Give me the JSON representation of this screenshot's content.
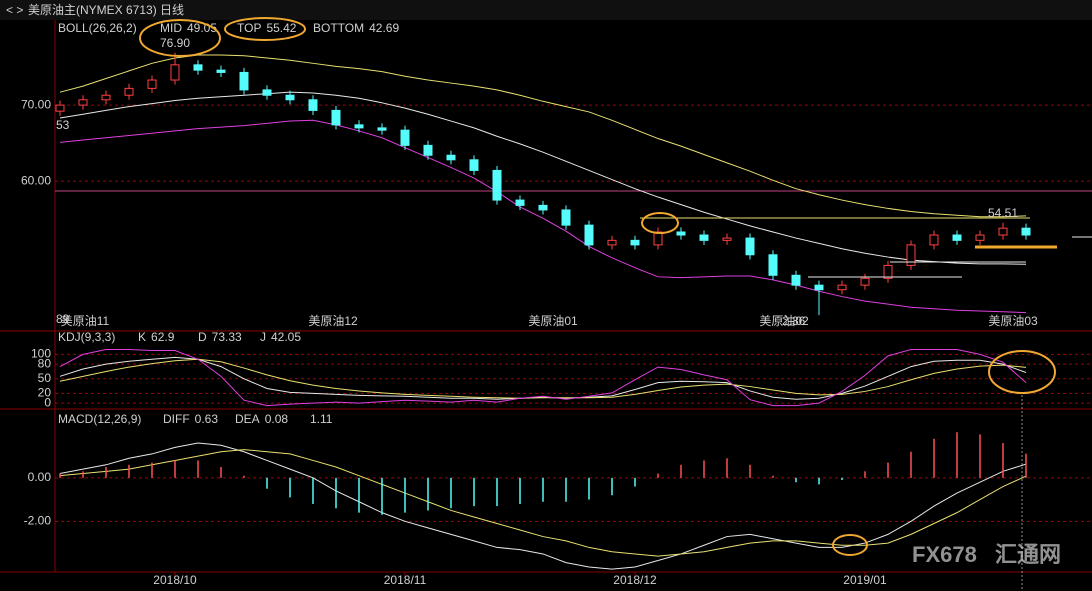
{
  "chart_data": [
    {
      "type": "candlestick",
      "title": "美原油主(NYMEX 6713)",
      "period": "日线",
      "indicator": "BOLL(26,26,2)",
      "categories": [
        null,
        null,
        null,
        null,
        null,
        "2018/10",
        null,
        null,
        null,
        null,
        null,
        null,
        null,
        null,
        null,
        "2018/11",
        null,
        null,
        null,
        null,
        null,
        null,
        null,
        null,
        null,
        "2018/12",
        null,
        null,
        null,
        null,
        null,
        null,
        null,
        null,
        null,
        "2019/01",
        null,
        null,
        null,
        null,
        null,
        null,
        null
      ],
      "open": [
        69.2,
        70.0,
        70.7,
        71.3,
        72.2,
        73.3,
        75.3,
        74.6,
        74.3,
        72.0,
        71.3,
        70.7,
        69.3,
        67.4,
        67.0,
        66.7,
        64.7,
        63.4,
        62.8,
        61.4,
        57.5,
        56.8,
        56.2,
        54.2,
        51.6,
        52.2,
        51.6,
        53.3,
        52.9,
        52.2,
        52.5,
        50.3,
        47.6,
        46.3,
        45.7,
        46.3,
        47.2,
        48.9,
        51.6,
        52.9,
        52.2,
        52.9,
        53.8
      ],
      "high": [
        70.6,
        71.3,
        71.9,
        72.8,
        73.9,
        76.9,
        75.9,
        75.2,
        74.9,
        72.6,
        71.9,
        71.3,
        69.9,
        68.0,
        67.6,
        67.3,
        65.3,
        64.0,
        63.4,
        62.0,
        58.1,
        57.4,
        56.8,
        54.8,
        52.8,
        52.8,
        53.9,
        53.9,
        53.5,
        53.1,
        53.1,
        50.9,
        48.2,
        46.9,
        46.9,
        47.8,
        49.5,
        52.2,
        53.5,
        53.5,
        53.5,
        54.51,
        54.4
      ],
      "low": [
        68.6,
        69.4,
        70.1,
        70.7,
        71.6,
        72.7,
        74.0,
        73.7,
        71.4,
        70.7,
        70.1,
        68.7,
        66.8,
        66.4,
        66.1,
        64.1,
        62.8,
        62.2,
        60.8,
        56.9,
        56.2,
        55.6,
        53.6,
        51.0,
        51.0,
        51.0,
        51.0,
        52.3,
        51.6,
        51.6,
        49.7,
        47.0,
        45.7,
        42.36,
        45.1,
        45.7,
        46.6,
        48.3,
        51.0,
        51.6,
        51.6,
        52.3,
        52.3
      ],
      "close": [
        70.0,
        70.7,
        71.3,
        72.2,
        73.3,
        75.3,
        74.6,
        74.3,
        72.0,
        71.3,
        70.7,
        69.3,
        67.4,
        67.0,
        66.7,
        64.7,
        63.4,
        62.8,
        61.4,
        57.5,
        56.8,
        56.2,
        54.2,
        51.6,
        52.2,
        51.6,
        53.3,
        52.9,
        52.2,
        52.5,
        50.3,
        47.6,
        46.3,
        45.7,
        46.3,
        47.2,
        48.9,
        51.6,
        52.9,
        52.2,
        52.9,
        53.8,
        52.9
      ],
      "up_color": "#ff4040",
      "down_color": "#54fcfc",
      "series": [
        {
          "name": "MID",
          "color": "#e8e8e8",
          "values": [
            68.3,
            68.8,
            69.3,
            69.8,
            70.2,
            70.6,
            70.9,
            71.1,
            71.3,
            71.5,
            71.7,
            71.6,
            71.3,
            70.9,
            70.3,
            69.6,
            68.8,
            67.9,
            67.0,
            65.9,
            64.9,
            63.8,
            62.6,
            61.4,
            60.2,
            59.0,
            57.9,
            56.9,
            55.9,
            55.0,
            54.1,
            53.3,
            52.5,
            51.8,
            51.1,
            50.5,
            50.0,
            49.6,
            49.4,
            49.2,
            49.1,
            49.1,
            49.05
          ]
        },
        {
          "name": "TOP",
          "color": "#e8e070",
          "values": [
            71.7,
            72.5,
            73.5,
            74.5,
            75.5,
            76.2,
            76.6,
            76.6,
            76.5,
            76.2,
            75.9,
            75.5,
            75.1,
            74.8,
            74.4,
            73.8,
            73.3,
            72.9,
            72.5,
            72.0,
            71.3,
            70.5,
            69.8,
            69.1,
            68.0,
            66.8,
            65.6,
            64.6,
            63.5,
            62.4,
            61.3,
            60.1,
            59.0,
            58.2,
            57.5,
            56.9,
            56.4,
            56.0,
            55.7,
            55.5,
            55.3,
            55.3,
            55.42
          ]
        },
        {
          "name": "BOTTOM",
          "color": "#e040e0",
          "values": [
            65.1,
            65.4,
            65.7,
            66.0,
            66.3,
            66.6,
            66.9,
            67.1,
            67.3,
            67.6,
            67.9,
            68.0,
            67.4,
            66.6,
            65.7,
            64.4,
            63.1,
            61.8,
            60.4,
            58.6,
            56.6,
            55.1,
            53.4,
            51.4,
            49.9,
            48.6,
            47.4,
            47.3,
            47.4,
            47.5,
            47.5,
            47.0,
            46.3,
            45.5,
            44.8,
            44.2,
            43.8,
            43.4,
            43.2,
            43.0,
            42.9,
            42.8,
            42.69
          ]
        }
      ],
      "ylim": [
        40.4,
        81.2
      ],
      "yticks": [
        {
          "value": 70,
          "label": "70.00"
        },
        {
          "value": 60,
          "label": "60.00"
        }
      ],
      "annotations": [
        {
          "text": "76.90",
          "value": 76.9
        },
        {
          "text": "54.51",
          "value": 54.51
        }
      ],
      "contract_labels": [
        "美原油11",
        "美原油12",
        "美原油01",
        "美原油02",
        "美原油03"
      ],
      "edge_labels": [
        "53",
        "89",
        "2.36"
      ]
    },
    {
      "type": "line",
      "indicator": "KDJ(9,3,3)",
      "series": [
        {
          "name": "K",
          "color": "#e8e8e8",
          "values": [
            55,
            70,
            80,
            86,
            90,
            94,
            90,
            75,
            50,
            30,
            22,
            20,
            18,
            16,
            15,
            14,
            12,
            10,
            10,
            8,
            10,
            12,
            10,
            12,
            15,
            28,
            42,
            45,
            44,
            42,
            25,
            12,
            8,
            10,
            20,
            35,
            55,
            75,
            86,
            88,
            88,
            80,
            62.9
          ]
        },
        {
          "name": "D",
          "color": "#e8e070",
          "values": [
            45,
            55,
            65,
            74,
            81,
            87,
            90,
            85,
            72,
            58,
            46,
            37,
            30,
            25,
            21,
            18,
            16,
            14,
            12,
            11,
            10,
            11,
            11,
            11,
            12,
            18,
            26,
            33,
            37,
            39,
            34,
            27,
            20,
            17,
            18,
            24,
            34,
            48,
            61,
            70,
            76,
            78,
            73.33
          ]
        },
        {
          "name": "J",
          "color": "#e040e0",
          "values": [
            75,
            100,
            110,
            110,
            108,
            108,
            90,
            55,
            6,
            -5,
            -2,
            0,
            2,
            0,
            3,
            6,
            4,
            2,
            6,
            2,
            10,
            14,
            8,
            14,
            21,
            48,
            74,
            69,
            58,
            48,
            7,
            -5,
            -5,
            0,
            24,
            57,
            97,
            110,
            110,
            110,
            100,
            84,
            42.05
          ]
        }
      ],
      "ylim": [
        -10,
        146
      ],
      "yticks": [
        100,
        80,
        50,
        20,
        0
      ]
    },
    {
      "type": "combo",
      "indicator": "MACD(12,26,9)",
      "series": [
        {
          "name": "DIFF",
          "color": "#e8e8e8",
          "values": [
            0.2,
            0.4,
            0.6,
            0.9,
            1.1,
            1.4,
            1.6,
            1.5,
            1.2,
            0.8,
            0.4,
            0.0,
            -0.6,
            -1.1,
            -1.6,
            -2.0,
            -2.3,
            -2.6,
            -2.9,
            -3.2,
            -3.3,
            -3.5,
            -3.9,
            -4.1,
            -4.2,
            -4.1,
            -3.8,
            -3.5,
            -3.1,
            -2.7,
            -2.6,
            -2.8,
            -3.0,
            -3.2,
            -3.2,
            -3.0,
            -2.6,
            -2.0,
            -1.3,
            -0.7,
            -0.2,
            0.3,
            0.63
          ]
        },
        {
          "name": "DEA",
          "color": "#e8e070",
          "values": [
            0.1,
            0.2,
            0.3,
            0.4,
            0.6,
            0.8,
            1.0,
            1.2,
            1.3,
            1.2,
            1.1,
            0.8,
            0.5,
            0.1,
            -0.3,
            -0.7,
            -1.1,
            -1.5,
            -1.8,
            -2.1,
            -2.4,
            -2.7,
            -2.9,
            -3.2,
            -3.4,
            -3.5,
            -3.6,
            -3.5,
            -3.4,
            -3.2,
            -3.0,
            -2.9,
            -2.9,
            -3.0,
            -3.1,
            -3.1,
            -3.0,
            -2.6,
            -2.1,
            -1.6,
            -1.0,
            -0.4,
            0.08
          ]
        },
        {
          "type": "bar",
          "color": "#ff5050",
          "negative_color": "#54fcfc",
          "values": [
            0.2,
            0.3,
            0.5,
            0.6,
            0.7,
            0.8,
            0.8,
            0.5,
            0.1,
            -0.5,
            -0.9,
            -1.2,
            -1.4,
            -1.6,
            -1.7,
            -1.6,
            -1.5,
            -1.4,
            -1.3,
            -1.3,
            -1.2,
            -1.1,
            -1.1,
            -1.0,
            -0.8,
            -0.4,
            0.2,
            0.6,
            0.8,
            0.9,
            0.6,
            0.1,
            -0.2,
            -0.3,
            -0.1,
            0.3,
            0.7,
            1.2,
            1.8,
            2.1,
            2.0,
            1.6,
            1.11
          ]
        }
      ],
      "ylim": [
        -4.33,
        3.12
      ],
      "yticks": [
        {
          "value": 0,
          "label": "0.00"
        },
        {
          "value": -2,
          "label": "-2.00"
        }
      ]
    }
  ],
  "watermark": {
    "brand": "FX678",
    "site": "汇通网"
  }
}
